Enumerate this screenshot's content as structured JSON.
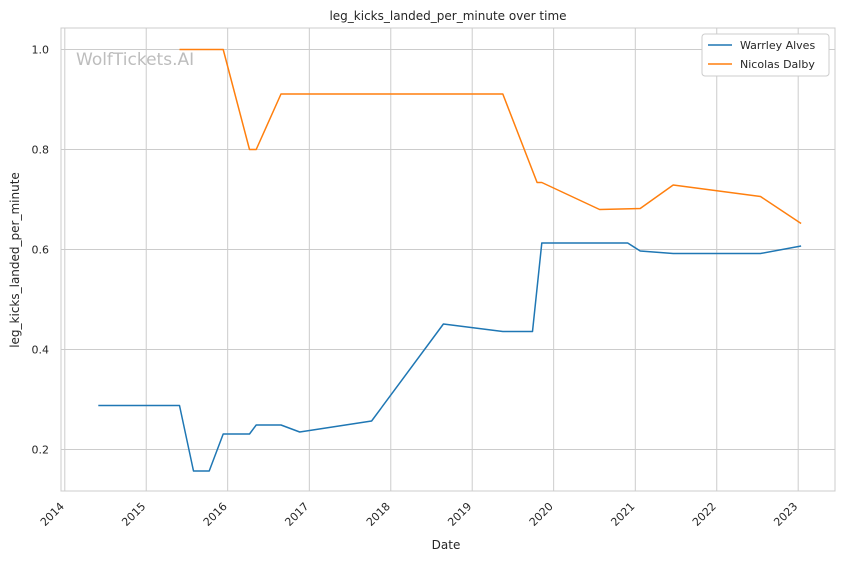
{
  "chart_data": {
    "type": "line",
    "title": "leg_kicks_landed_per_minute over time",
    "xlabel": "Date",
    "ylabel": "leg_kicks_landed_per_minute",
    "watermark": "WolfTickets.AI",
    "xlim": [
      "2013-12-15",
      "2023-06-15"
    ],
    "ylim": [
      0.117,
      1.043
    ],
    "x_ticks": [
      "2014",
      "2015",
      "2016",
      "2017",
      "2018",
      "2019",
      "2020",
      "2021",
      "2022",
      "2023"
    ],
    "y_ticks": [
      "0.2",
      "0.4",
      "0.6",
      "0.8",
      "1.0"
    ],
    "grid": true,
    "legend_position": "top-right",
    "colors": {
      "Warrley Alves": "#1f77b4",
      "Nicolas Dalby": "#ff7f0e"
    },
    "series": [
      {
        "name": "Warrley Alves",
        "x": [
          "2014-05-31",
          "2015-05-30",
          "2015-08-01",
          "2015-10-10",
          "2015-12-12",
          "2016-04-08",
          "2016-05-08",
          "2016-08-27",
          "2016-11-19",
          "2017-10-07",
          "2018-08-25",
          "2019-05-18",
          "2019-09-28",
          "2019-11-09",
          "2020-11-28",
          "2021-01-23",
          "2021-06-20",
          "2022-07-16",
          "2023-01-14"
        ],
        "values": [
          0.288,
          0.288,
          0.157,
          0.157,
          0.231,
          0.231,
          0.249,
          0.249,
          0.235,
          0.257,
          0.451,
          0.436,
          0.436,
          0.613,
          0.613,
          0.597,
          0.592,
          0.592,
          0.607
        ]
      },
      {
        "name": "Nicolas Dalby",
        "x": [
          "2015-05-30",
          "2015-12-12",
          "2016-04-08",
          "2016-05-08",
          "2016-08-27",
          "2019-05-18",
          "2019-10-19",
          "2019-11-09",
          "2020-07-25",
          "2021-01-23",
          "2021-06-20",
          "2022-07-16",
          "2023-01-14"
        ],
        "values": [
          1.0,
          1.0,
          0.8,
          0.8,
          0.911,
          0.911,
          0.734,
          0.734,
          0.68,
          0.682,
          0.729,
          0.706,
          0.652
        ]
      }
    ]
  }
}
